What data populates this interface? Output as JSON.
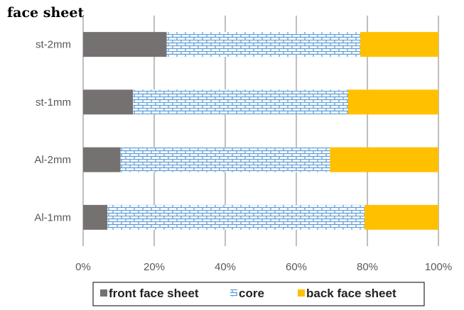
{
  "chart_data": {
    "type": "bar",
    "orientation": "horizontal",
    "stacked": true,
    "percent_stacked": true,
    "title": "face sheet",
    "categories": [
      "st-2mm",
      "st-1mm",
      "Al-2mm",
      "Al-1mm"
    ],
    "series": [
      {
        "name": "front face sheet",
        "values": [
          23.5,
          14.0,
          10.5,
          6.8
        ],
        "color": "#767171",
        "pattern": "solid"
      },
      {
        "name": "core",
        "values": [
          54.5,
          60.5,
          59.0,
          72.4
        ],
        "color": "#5B9BD5",
        "pattern": "brick"
      },
      {
        "name": "back face sheet",
        "values": [
          22.0,
          25.5,
          30.5,
          20.8
        ],
        "color": "#FFC000",
        "pattern": "solid"
      }
    ],
    "xlim": [
      0,
      100
    ],
    "xticks": [
      "0%",
      "20%",
      "40%",
      "60%",
      "80%",
      "100%"
    ],
    "grid": "vertical",
    "legend_position": "bottom"
  }
}
